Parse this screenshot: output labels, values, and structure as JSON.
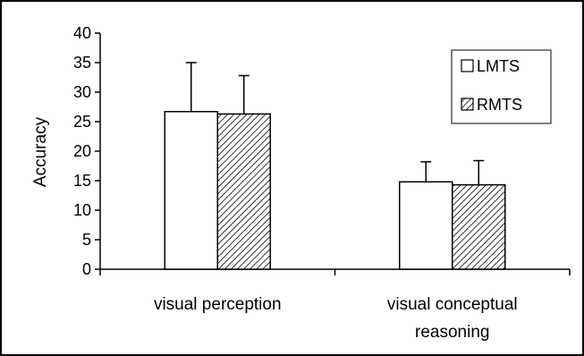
{
  "chart_data": {
    "type": "bar",
    "categories": [
      "visual perception",
      "visual conceptual reasoning"
    ],
    "category_lines": [
      [
        "visual perception"
      ],
      [
        "visual conceptual",
        "reasoning"
      ]
    ],
    "ylabel": "Accuracy",
    "ylim": [
      0,
      40
    ],
    "yticks": [
      "0",
      "5",
      "10",
      "15",
      "20",
      "25",
      "30",
      "35",
      "40"
    ],
    "grid": false,
    "legend_position": "top-right",
    "series": [
      {
        "name": "LMTS",
        "fill": "white",
        "values": [
          26.7,
          14.8
        ],
        "errors": [
          8.3,
          3.4
        ]
      },
      {
        "name": "RMTS",
        "fill": "hatched",
        "values": [
          26.3,
          14.3
        ],
        "errors": [
          6.5,
          4.1
        ]
      }
    ]
  }
}
